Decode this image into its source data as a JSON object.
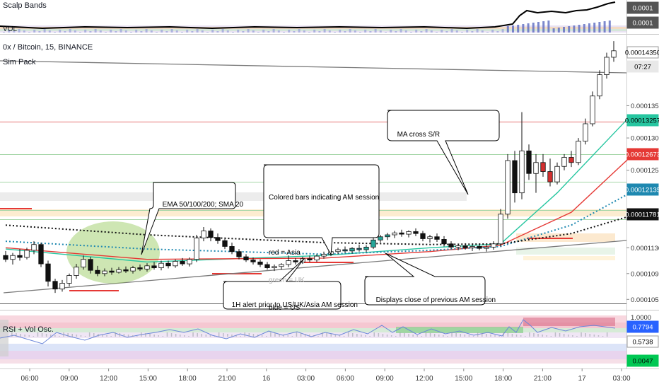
{
  "chart_data": {
    "type": "candlestick",
    "title": "0x / Bitcoin, 15, BINANCE",
    "overlays": [
      "Sim Pack"
    ],
    "x_tick_labels": [
      "06:00",
      "09:00",
      "12:00",
      "15:00",
      "18:00",
      "21:00",
      "16",
      "03:00",
      "06:00",
      "09:00",
      "12:00",
      "15:00",
      "18:00",
      "21:00",
      "17",
      "03:00"
    ],
    "y_tick_labels": [
      "0.00014350",
      "0.00013500",
      "0.00013000",
      "0.00012500",
      "0.00011300",
      "0.00010900",
      "0.00010500"
    ],
    "y_range": [
      0.0001035,
      0.000146
    ],
    "price_tags": [
      {
        "value": "0.00014350",
        "color": "#ffffff",
        "text_color": "#000000"
      },
      {
        "value": "07:27",
        "color": "#e8e8e8",
        "text_color": "#000000"
      },
      {
        "value": "0.00013257",
        "color": "#26c6a0",
        "text_color": "#000000"
      },
      {
        "value": "0.00012673",
        "color": "#e53935",
        "text_color": "#ffffff"
      },
      {
        "value": "0.00012135",
        "color": "#1e88b0",
        "text_color": "#ffffff"
      },
      {
        "value": "0.00011781",
        "color": "#111111",
        "text_color": "#ffffff"
      }
    ],
    "candles": [
      {
        "o": 0.0001118,
        "h": 0.0001125,
        "l": 0.0001108,
        "c": 0.0001112
      },
      {
        "o": 0.0001112,
        "h": 0.0001122,
        "l": 0.0001104,
        "c": 0.0001118
      },
      {
        "o": 0.0001118,
        "h": 0.0001128,
        "l": 0.000111,
        "c": 0.0001115
      },
      {
        "o": 0.0001115,
        "h": 0.000113,
        "l": 0.0001112,
        "c": 0.0001126
      },
      {
        "o": 0.0001126,
        "h": 0.000114,
        "l": 0.000112,
        "c": 0.0001135
      },
      {
        "o": 0.0001135,
        "h": 0.0001138,
        "l": 0.00011,
        "c": 0.0001105
      },
      {
        "o": 0.0001105,
        "h": 0.000111,
        "l": 0.000107,
        "c": 0.0001078
      },
      {
        "o": 0.0001078,
        "h": 0.0001082,
        "l": 0.000106,
        "c": 0.0001066
      },
      {
        "o": 0.0001066,
        "h": 0.000108,
        "l": 0.0001062,
        "c": 0.0001075
      },
      {
        "o": 0.0001075,
        "h": 0.000109,
        "l": 0.000107,
        "c": 0.0001087
      },
      {
        "o": 0.0001087,
        "h": 0.0001105,
        "l": 0.0001082,
        "c": 0.00011
      },
      {
        "o": 0.00011,
        "h": 0.0001118,
        "l": 0.0001096,
        "c": 0.0001112
      },
      {
        "o": 0.0001112,
        "h": 0.0001116,
        "l": 0.000109,
        "c": 0.0001095
      },
      {
        "o": 0.0001095,
        "h": 0.0001102,
        "l": 0.0001086,
        "c": 0.000109
      },
      {
        "o": 0.000109,
        "h": 0.0001098,
        "l": 0.0001086,
        "c": 0.0001094
      },
      {
        "o": 0.0001094,
        "h": 0.0001099,
        "l": 0.0001088,
        "c": 0.0001092
      },
      {
        "o": 0.0001092,
        "h": 0.00011,
        "l": 0.000109,
        "c": 0.0001096
      },
      {
        "o": 0.0001096,
        "h": 0.0001101,
        "l": 0.0001091,
        "c": 0.0001094
      },
      {
        "o": 0.0001094,
        "h": 0.0001102,
        "l": 0.000109,
        "c": 0.0001099
      },
      {
        "o": 0.0001099,
        "h": 0.0001104,
        "l": 0.0001094,
        "c": 0.0001097
      },
      {
        "o": 0.0001097,
        "h": 0.0001106,
        "l": 0.0001093,
        "c": 0.0001102
      },
      {
        "o": 0.0001102,
        "h": 0.0001108,
        "l": 0.0001096,
        "c": 0.0001099
      },
      {
        "o": 0.0001099,
        "h": 0.000111,
        "l": 0.0001095,
        "c": 0.0001106
      },
      {
        "o": 0.0001106,
        "h": 0.000111,
        "l": 0.0001098,
        "c": 0.0001102
      },
      {
        "o": 0.0001102,
        "h": 0.0001112,
        "l": 0.0001099,
        "c": 0.0001109
      },
      {
        "o": 0.0001109,
        "h": 0.0001114,
        "l": 0.0001102,
        "c": 0.0001105
      },
      {
        "o": 0.0001105,
        "h": 0.0001115,
        "l": 0.0001101,
        "c": 0.0001112
      },
      {
        "o": 0.0001112,
        "h": 0.000115,
        "l": 0.0001108,
        "c": 0.0001145
      },
      {
        "o": 0.0001145,
        "h": 0.0001162,
        "l": 0.000114,
        "c": 0.0001156
      },
      {
        "o": 0.0001156,
        "h": 0.000116,
        "l": 0.000114,
        "c": 0.0001146
      },
      {
        "o": 0.0001146,
        "h": 0.0001152,
        "l": 0.0001136,
        "c": 0.0001141
      },
      {
        "o": 0.0001141,
        "h": 0.0001146,
        "l": 0.0001128,
        "c": 0.0001132
      },
      {
        "o": 0.0001132,
        "h": 0.0001138,
        "l": 0.000112,
        "c": 0.0001124
      },
      {
        "o": 0.0001124,
        "h": 0.0001128,
        "l": 0.0001112,
        "c": 0.0001116
      },
      {
        "o": 0.0001116,
        "h": 0.000112,
        "l": 0.0001108,
        "c": 0.0001111
      },
      {
        "o": 0.0001111,
        "h": 0.0001115,
        "l": 0.0001104,
        "c": 0.0001108
      },
      {
        "o": 0.0001108,
        "h": 0.0001112,
        "l": 0.00011,
        "c": 0.0001104
      },
      {
        "o": 0.0001104,
        "h": 0.0001108,
        "l": 0.0001096,
        "c": 0.0001099
      },
      {
        "o": 0.0001099,
        "h": 0.0001104,
        "l": 0.0001094,
        "c": 0.0001101
      },
      {
        "o": 0.0001101,
        "h": 0.0001106,
        "l": 0.0001096,
        "c": 0.0001104
      },
      {
        "o": 0.0001104,
        "h": 0.0001118,
        "l": 0.00011,
        "c": 0.000111
      },
      {
        "o": 0.000111,
        "h": 0.0001114,
        "l": 0.0001104,
        "c": 0.0001108
      },
      {
        "o": 0.0001108,
        "h": 0.0001116,
        "l": 0.0001105,
        "c": 0.0001113
      },
      {
        "o": 0.0001113,
        "h": 0.0001118,
        "l": 0.0001108,
        "c": 0.0001111
      },
      {
        "o": 0.0001111,
        "h": 0.000112,
        "l": 0.0001108,
        "c": 0.0001117
      },
      {
        "o": 0.0001117,
        "h": 0.0001124,
        "l": 0.0001113,
        "c": 0.000112
      },
      {
        "o": 0.000112,
        "h": 0.0001128,
        "l": 0.0001117,
        "c": 0.0001124
      },
      {
        "o": 0.0001124,
        "h": 0.000113,
        "l": 0.000112,
        "c": 0.0001127
      },
      {
        "o": 0.0001127,
        "h": 0.0001132,
        "l": 0.0001122,
        "c": 0.0001125
      },
      {
        "o": 0.0001125,
        "h": 0.0001131,
        "l": 0.0001121,
        "c": 0.0001129
      },
      {
        "o": 0.0001129,
        "h": 0.0001135,
        "l": 0.0001124,
        "c": 0.0001127
      },
      {
        "o": 0.0001127,
        "h": 0.0001134,
        "l": 0.0001123,
        "c": 0.0001131
      },
      {
        "o": 0.0001131,
        "h": 0.0001146,
        "l": 0.0001128,
        "c": 0.0001142
      },
      {
        "o": 0.0001142,
        "h": 0.000115,
        "l": 0.0001138,
        "c": 0.0001147
      },
      {
        "o": 0.0001147,
        "h": 0.0001153,
        "l": 0.0001142,
        "c": 0.000115
      },
      {
        "o": 0.000115,
        "h": 0.0001156,
        "l": 0.0001145,
        "c": 0.0001153
      },
      {
        "o": 0.0001153,
        "h": 0.0001158,
        "l": 0.0001147,
        "c": 0.0001151
      },
      {
        "o": 0.0001151,
        "h": 0.0001157,
        "l": 0.0001146,
        "c": 0.0001155
      },
      {
        "o": 0.0001155,
        "h": 0.000116,
        "l": 0.0001148,
        "c": 0.0001152
      },
      {
        "o": 0.0001152,
        "h": 0.0001156,
        "l": 0.000114,
        "c": 0.0001144
      },
      {
        "o": 0.0001144,
        "h": 0.000115,
        "l": 0.0001138,
        "c": 0.0001147
      },
      {
        "o": 0.0001147,
        "h": 0.0001152,
        "l": 0.0001139,
        "c": 0.0001143
      },
      {
        "o": 0.0001143,
        "h": 0.0001148,
        "l": 0.0001132,
        "c": 0.0001136
      },
      {
        "o": 0.0001136,
        "h": 0.000114,
        "l": 0.0001128,
        "c": 0.0001131
      },
      {
        "o": 0.0001131,
        "h": 0.0001136,
        "l": 0.0001126,
        "c": 0.0001133
      },
      {
        "o": 0.0001133,
        "h": 0.0001137,
        "l": 0.0001127,
        "c": 0.000113
      },
      {
        "o": 0.000113,
        "h": 0.0001135,
        "l": 0.0001125,
        "c": 0.0001132
      },
      {
        "o": 0.0001132,
        "h": 0.0001136,
        "l": 0.0001126,
        "c": 0.0001129
      },
      {
        "o": 0.0001129,
        "h": 0.0001134,
        "l": 0.0001124,
        "c": 0.0001131
      },
      {
        "o": 0.0001131,
        "h": 0.000114,
        "l": 0.0001127,
        "c": 0.0001136
      },
      {
        "o": 0.0001136,
        "h": 0.000119,
        "l": 0.0001132,
        "c": 0.0001182
      },
      {
        "o": 0.0001182,
        "h": 0.0001275,
        "l": 0.0001175,
        "c": 0.0001265
      },
      {
        "o": 0.0001265,
        "h": 0.000128,
        "l": 0.00012,
        "c": 0.0001215
      },
      {
        "o": 0.0001215,
        "h": 0.000134,
        "l": 0.0001205,
        "c": 0.000128
      },
      {
        "o": 0.000128,
        "h": 0.000129,
        "l": 0.0001235,
        "c": 0.0001245
      },
      {
        "o": 0.0001245,
        "h": 0.0001275,
        "l": 0.0001215,
        "c": 0.0001262
      },
      {
        "o": 0.0001262,
        "h": 0.0001275,
        "l": 0.000124,
        "c": 0.0001248
      },
      {
        "o": 0.0001248,
        "h": 0.0001268,
        "l": 0.0001225,
        "c": 0.0001232
      },
      {
        "o": 0.0001232,
        "h": 0.0001262,
        "l": 0.0001228,
        "c": 0.0001256
      },
      {
        "o": 0.0001256,
        "h": 0.0001275,
        "l": 0.000125,
        "c": 0.000127
      },
      {
        "o": 0.000127,
        "h": 0.000128,
        "l": 0.0001255,
        "c": 0.0001262
      },
      {
        "o": 0.0001262,
        "h": 0.00013,
        "l": 0.0001258,
        "c": 0.0001295
      },
      {
        "o": 0.0001295,
        "h": 0.000133,
        "l": 0.000129,
        "c": 0.0001322
      },
      {
        "o": 0.0001322,
        "h": 0.0001372,
        "l": 0.0001318,
        "c": 0.0001365
      },
      {
        "o": 0.0001365,
        "h": 0.0001405,
        "l": 0.000136,
        "c": 0.0001398
      },
      {
        "o": 0.0001398,
        "h": 0.0001432,
        "l": 0.0001392,
        "c": 0.0001425
      },
      {
        "o": 0.0001425,
        "h": 0.000145,
        "l": 0.0001418,
        "c": 0.0001435
      }
    ],
    "moving_averages": [
      {
        "name": "EMA 50",
        "color": "#26c6a0",
        "points": [
          [
            0,
            0.0001128
          ],
          [
            20,
            0.0001108
          ],
          [
            45,
            0.0001118
          ],
          [
            60,
            0.000113
          ],
          [
            70,
            0.0001136
          ],
          [
            78,
            0.0001215
          ],
          [
            88,
            0.000133
          ]
        ]
      },
      {
        "name": "EMA 100",
        "color": "#e53935",
        "points": [
          [
            0,
            0.000113
          ],
          [
            20,
            0.0001112
          ],
          [
            45,
            0.0001114
          ],
          [
            60,
            0.0001124
          ],
          [
            70,
            0.0001134
          ],
          [
            80,
            0.0001185
          ],
          [
            88,
            0.0001267
          ]
        ]
      },
      {
        "name": "EMA 200",
        "color": "#1e88b0",
        "style": "dotted",
        "points": [
          [
            0,
            0.000114
          ],
          [
            20,
            0.0001128
          ],
          [
            45,
            0.000112
          ],
          [
            60,
            0.0001126
          ],
          [
            70,
            0.0001132
          ],
          [
            80,
            0.0001165
          ],
          [
            88,
            0.0001213
          ]
        ]
      },
      {
        "name": "SMA 20",
        "color": "#111111",
        "style": "dotted",
        "points": [
          [
            0,
            0.0001165
          ],
          [
            20,
            0.000115
          ],
          [
            45,
            0.0001138
          ],
          [
            60,
            0.0001135
          ],
          [
            70,
            0.0001136
          ],
          [
            80,
            0.0001152
          ],
          [
            88,
            0.0001178
          ]
        ]
      }
    ],
    "annotations": [
      {
        "id": "ema",
        "lines": [
          "EMA 50/100/200; SMA 20"
        ]
      },
      {
        "id": "colored",
        "lines": [
          "Colored bars indicating AM session",
          "",
          "red = Asia",
          "green = UK",
          "blue = US"
        ]
      },
      {
        "id": "macross",
        "lines": [
          "MA cross S/R"
        ]
      },
      {
        "id": "alert1h",
        "lines": [
          "1H alert prior to US/UK/Asia AM session"
        ]
      },
      {
        "id": "closeprev",
        "lines": [
          "Displays close of previous AM session"
        ]
      }
    ],
    "top_pane": {
      "labels": [
        "Scalp Bands",
        "VOL"
      ],
      "price_tags": [
        "0.0001",
        "0.0001"
      ]
    },
    "rsi_pane": {
      "label": "RSI + Vol Osc.",
      "y_tick_labels": [
        "1.0000"
      ],
      "price_tags": [
        {
          "value": "0.7794",
          "color": "#2962ff",
          "text_color": "#ffffff"
        },
        {
          "value": "0.5738",
          "color": "#ffffff",
          "text_color": "#000000"
        },
        {
          "value": "0.0047",
          "color": "#00c853",
          "text_color": "#000000"
        }
      ]
    }
  }
}
